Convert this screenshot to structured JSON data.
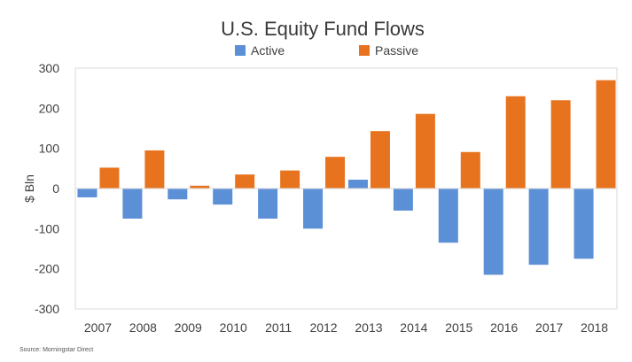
{
  "chart_data": {
    "type": "bar",
    "title": "U.S. Equity Fund Flows",
    "ylabel": "$ Bln",
    "xlabel": "",
    "categories": [
      "2007",
      "2008",
      "2009",
      "2010",
      "2011",
      "2012",
      "2013",
      "2014",
      "2015",
      "2016",
      "2017",
      "2018"
    ],
    "series": [
      {
        "name": "Active",
        "color": "#5b8fd6",
        "values": [
          -22,
          -75,
          -27,
          -40,
          -75,
          -100,
          22,
          -55,
          -135,
          -215,
          -190,
          -175
        ]
      },
      {
        "name": "Passive",
        "color": "#e8731e",
        "values": [
          52,
          95,
          7,
          35,
          45,
          79,
          143,
          186,
          91,
          230,
          220,
          270
        ]
      }
    ],
    "ylim": [
      -300,
      300
    ],
    "yticks": [
      -300,
      -200,
      -100,
      0,
      100,
      200,
      300
    ],
    "ytick_labels": [
      "-300",
      "-200",
      "-100",
      "0",
      "100",
      "200",
      "300"
    ],
    "grid": false,
    "legend_position": "top-center",
    "source": "Source: Morningstar Direct"
  }
}
